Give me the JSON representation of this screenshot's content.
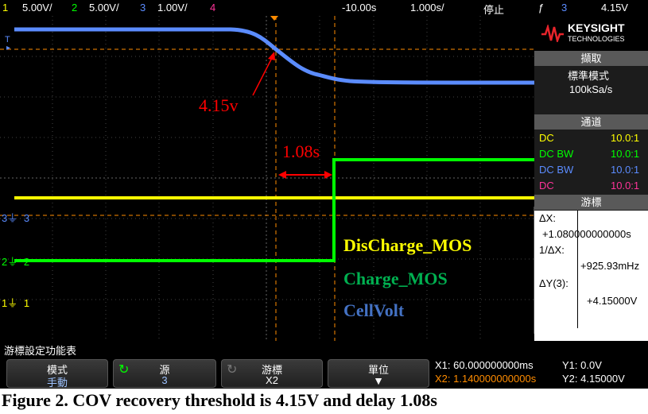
{
  "topbar": {
    "ch1_num": "1",
    "ch1_scale": "5.00V/",
    "ch2_num": "2",
    "ch2_scale": "5.00V/",
    "ch3_num": "3",
    "ch3_scale": "1.00V/",
    "ch4_num": "4",
    "time_offset": "-10.00s",
    "time_scale": "1.000s/",
    "run_state": "停止",
    "trigger_symbol": "ƒ",
    "trigger_source": "3",
    "trigger_level": "4.15V"
  },
  "brand": {
    "name": "KEYSIGHT",
    "sub": "TECHNOLOGIES"
  },
  "acquire": {
    "title": "擷取",
    "mode": "標準模式",
    "rate": "100kSa/s"
  },
  "channels": {
    "title": "通道",
    "rows": [
      {
        "coupling": "DC",
        "probe": "10.0:1",
        "color": "#ffff00"
      },
      {
        "coupling": "DC BW",
        "probe": "10.0:1",
        "color": "#00ff00"
      },
      {
        "coupling": "DC BW",
        "probe": "10.0:1",
        "color": "#5b8cff"
      },
      {
        "coupling": "DC",
        "probe": "10.0:1",
        "color": "#ff3399"
      }
    ]
  },
  "cursors": {
    "title": "游標",
    "dx_label": "ΔX:",
    "dx_value": "+1.080000000000s",
    "inv_dx_label": "1/ΔX:",
    "inv_dx_value": "+925.93mHz",
    "dy_label": "ΔY(3):",
    "dy_value": "+4.15000V"
  },
  "annotations": {
    "threshold": "4.15v",
    "delay": "1.08s",
    "discharge_label": "DisCharge_MOS",
    "charge_label": "Charge_MOS",
    "cellvolt_label": "CellVolt"
  },
  "markers": {
    "t": "T",
    "ch3": "3",
    "ch2": "2",
    "ch1": "1"
  },
  "menu": {
    "title": "游標設定功能表",
    "mode_label": "模式",
    "mode_value": "手動",
    "source_label": "源",
    "source_value": "3",
    "cursor_label": "游標",
    "cursor_value": "X2",
    "units_label": "單位"
  },
  "readout": {
    "x1": "X1: 60.000000000ms",
    "x2": "X2: 1.140000000000s",
    "y1": "Y1: 0.0V",
    "y2": "Y2: 4.15000V"
  },
  "caption": "Figure 2. COV recovery threshold is 4.15V and delay 1.08s",
  "colors": {
    "ch1": "#ffff00",
    "ch2": "#00ff00",
    "ch3": "#5b8cff",
    "ch4": "#ff3399",
    "annotation": "#ff0000",
    "cursor": "#ff8c00"
  }
}
